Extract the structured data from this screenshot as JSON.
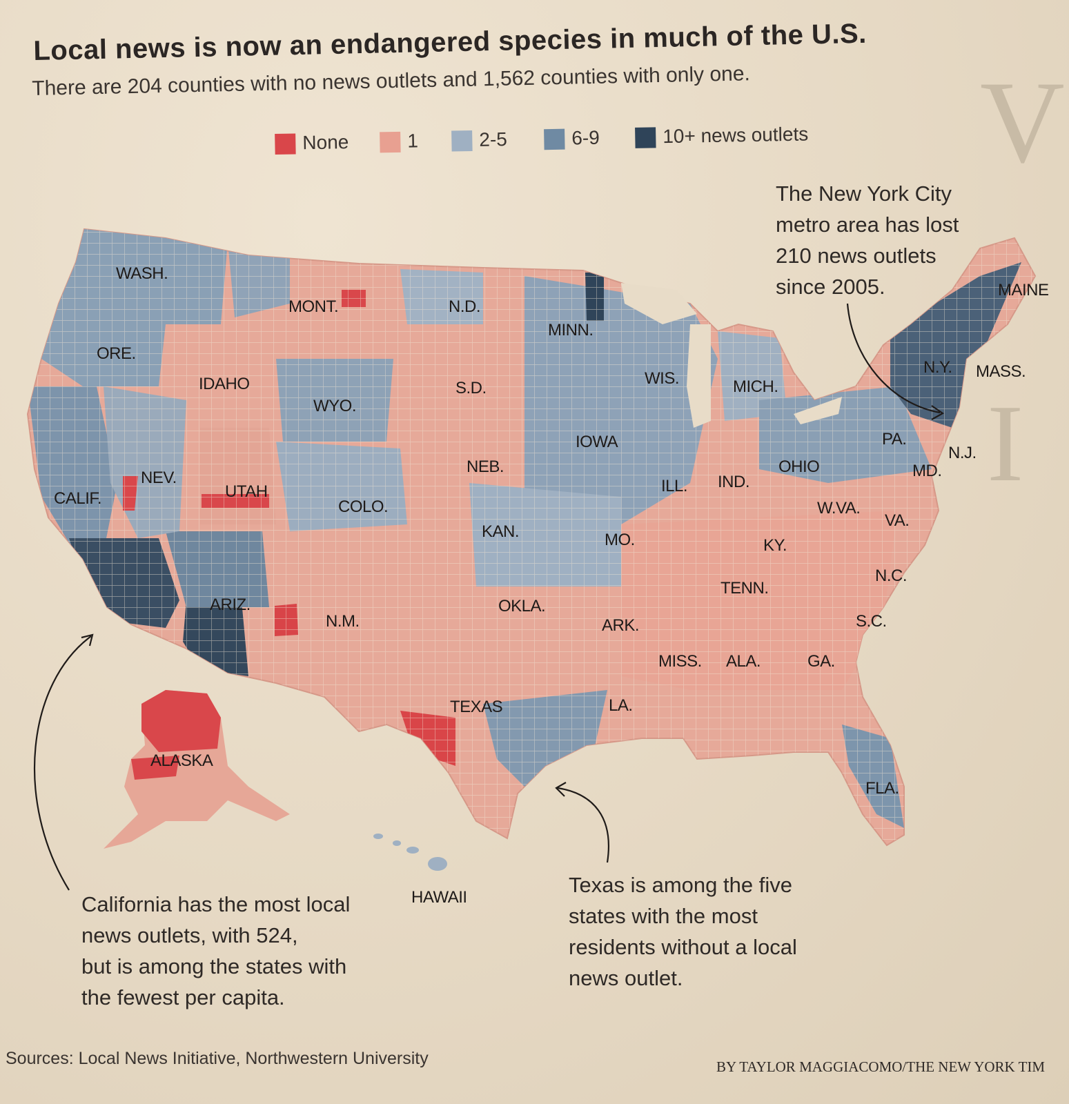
{
  "title": "Local news is now an endangered species in much of the U.S.",
  "subtitle": "There are 204 counties with no news outlets and 1,562 counties with only one.",
  "legend": {
    "items": [
      {
        "label": "None",
        "color": "#d9464a"
      },
      {
        "label": "1",
        "color": "#e8a091"
      },
      {
        "label": "2-5",
        "color": "#9fb0c2"
      },
      {
        "label": "6-9",
        "color": "#6f8aa3"
      },
      {
        "label": "10+ news outlets",
        "color": "#2f4459"
      }
    ]
  },
  "states": {
    "wash": "WASH.",
    "ore": "ORE.",
    "calif": "CALIF.",
    "idaho": "IDAHO",
    "nev": "NEV.",
    "mont": "MONT.",
    "wyo": "WYO.",
    "utah": "UTAH",
    "colo": "COLO.",
    "ariz": "ARIZ.",
    "nm": "N.M.",
    "nd": "N.D.",
    "sd": "S.D.",
    "neb": "NEB.",
    "kan": "KAN.",
    "okla": "OKLA.",
    "texas": "TEXAS",
    "minn": "MINN.",
    "iowa": "IOWA",
    "mo": "MO.",
    "ark": "ARK.",
    "la": "LA.",
    "wis": "WIS.",
    "ill": "ILL.",
    "mich": "MICH.",
    "ind": "IND.",
    "ohio": "OHIO",
    "ky": "KY.",
    "tenn": "TENN.",
    "miss": "MISS.",
    "ala": "ALA.",
    "ga": "GA.",
    "fla": "FLA.",
    "sc": "S.C.",
    "nc": "N.C.",
    "va": "VA.",
    "wva": "W.VA.",
    "pa": "PA.",
    "md": "MD.",
    "nj": "N.J.",
    "ny": "N.Y.",
    "mass": "MASS.",
    "maine": "MAINE",
    "alaska": "ALASKA",
    "hawaii": "HAWAII"
  },
  "notes": {
    "nyc": [
      "The New York City",
      "metro area has lost",
      "210 news outlets",
      "since 2005."
    ],
    "california": [
      "California has the most local",
      "news outlets, with 524,",
      "but is among the states with",
      "the fewest per capita."
    ],
    "texas": [
      "Texas is among the five",
      "states with the most",
      "residents without a local",
      "news outlet."
    ]
  },
  "source": "Sources: Local News Initiative, Northwestern University",
  "credit": "BY TAYLOR MAGGIACOMO/THE NEW YORK TIM"
}
